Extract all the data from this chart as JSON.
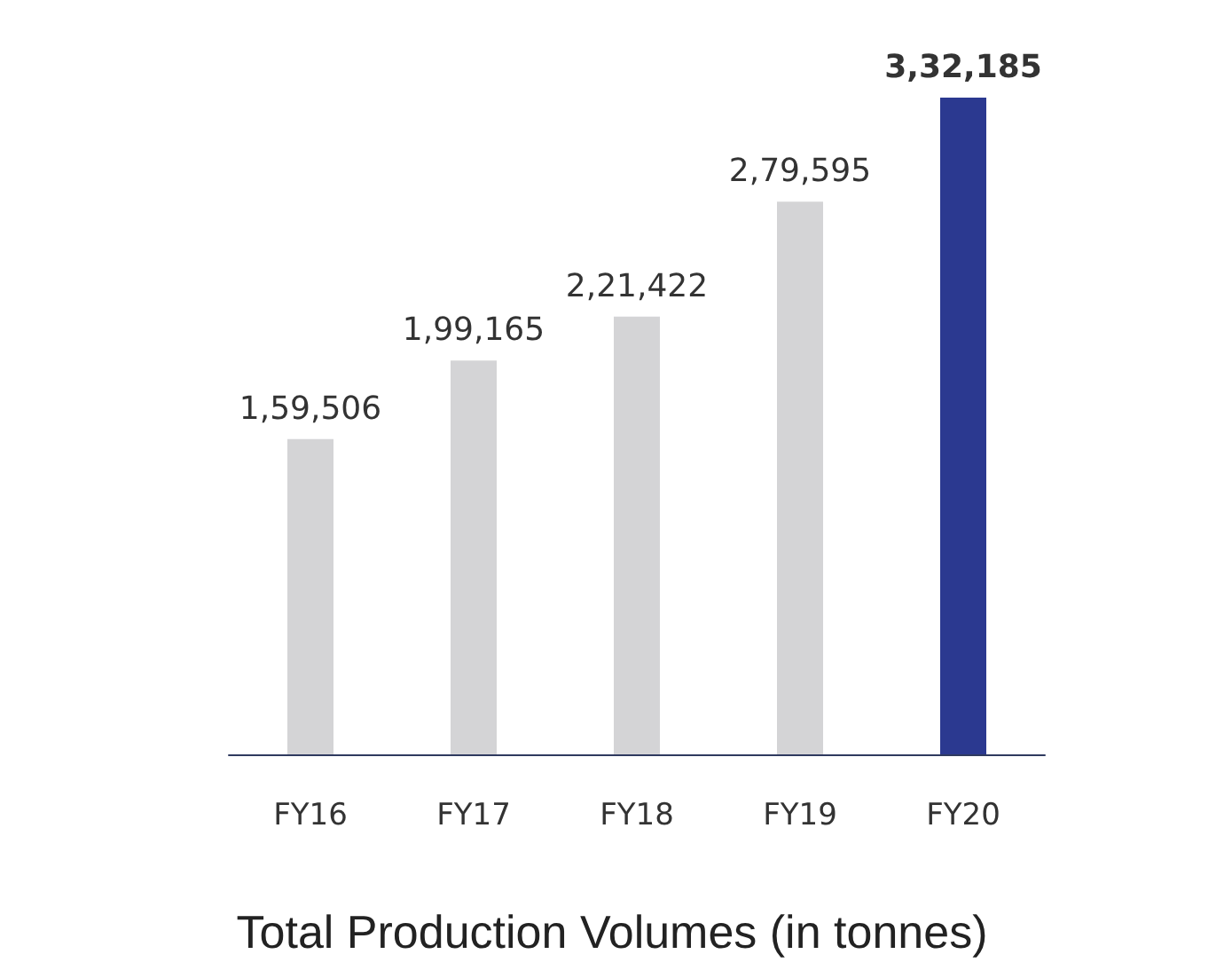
{
  "chart_data": {
    "type": "bar",
    "title": "Total Production Volumes (in tonnes)",
    "categories": [
      "FY16",
      "FY17",
      "FY18",
      "FY19",
      "FY20"
    ],
    "values": [
      159506,
      199165,
      221422,
      279595,
      332185
    ],
    "colors": [
      "#d4d4d6",
      "#d4d4d6",
      "#d4d4d6",
      "#d4d4d6",
      "#2b3990"
    ],
    "value_labels": [
      "1,59,506",
      "1,99,165",
      "2,21,422",
      "2,79,595",
      "3,32,185"
    ]
  }
}
